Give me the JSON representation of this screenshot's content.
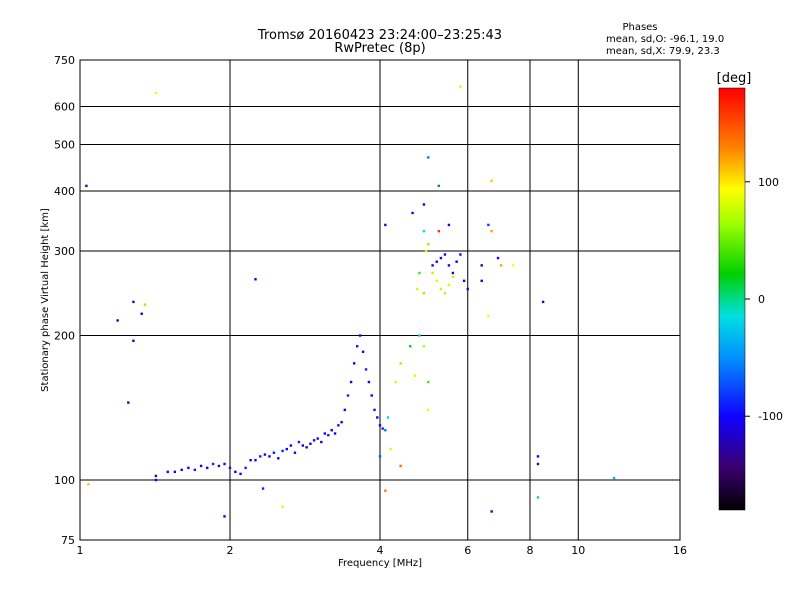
{
  "chart_data": {
    "type": "scatter",
    "title": "Tromsø 20160423 23:24:00–23:25:43",
    "subtitle": "RwPretec (8p)",
    "xlabel": "Frequency [MHz]",
    "ylabel": "Stationary phase Virtual Height [km]",
    "xscale": "log",
    "yscale": "log",
    "xlim": [
      1,
      16
    ],
    "ylim": [
      75,
      750
    ],
    "x_ticks": [
      1,
      2,
      4,
      6,
      8,
      10,
      16
    ],
    "x_tick_labels": [
      "1",
      "2",
      "4",
      "6",
      "8",
      "10",
      "16"
    ],
    "y_ticks": [
      75,
      100,
      200,
      300,
      400,
      500,
      600,
      750
    ],
    "y_tick_labels": [
      "75",
      "100",
      "200",
      "300",
      "400",
      "500",
      "600",
      "750"
    ],
    "grid": true,
    "stats": {
      "heading": "Phases",
      "line_o": "mean, sd,O: -96.1, 19.0",
      "line_x": "mean, sd,X:  79.9, 23.3"
    },
    "colorbar": {
      "label": "[deg]",
      "min": -180,
      "max": 180,
      "ticks": [
        100,
        0,
        -100
      ],
      "tick_labels": [
        "100",
        "0",
        "-100"
      ]
    },
    "series": [
      {
        "points": [
          [
            1.03,
            410,
            -120
          ],
          [
            1.19,
            215,
            -110
          ],
          [
            1.28,
            235,
            -120
          ],
          [
            1.28,
            195,
            -120
          ],
          [
            1.33,
            222,
            -100
          ],
          [
            1.35,
            232,
            60
          ],
          [
            1.25,
            145,
            -125
          ],
          [
            1.42,
            640,
            90
          ],
          [
            1.04,
            98,
            110
          ],
          [
            1.95,
            84,
            -110
          ],
          [
            2.25,
            262,
            -110
          ],
          [
            2.33,
            96,
            -90
          ],
          [
            2.55,
            88,
            100
          ],
          [
            1.42,
            102,
            -110
          ],
          [
            1.42,
            100,
            -105
          ],
          [
            1.5,
            104,
            -100
          ],
          [
            1.55,
            104,
            -115
          ],
          [
            1.6,
            105,
            -120
          ],
          [
            1.65,
            106,
            -100
          ],
          [
            1.7,
            105,
            -95
          ],
          [
            1.75,
            107,
            -110
          ],
          [
            1.8,
            106,
            -100
          ],
          [
            1.85,
            108,
            -90
          ],
          [
            1.9,
            107,
            -110
          ],
          [
            1.95,
            108,
            -100
          ],
          [
            2.0,
            106,
            -95
          ],
          [
            2.05,
            104,
            -110
          ],
          [
            2.1,
            103,
            -100
          ],
          [
            2.15,
            106,
            -90
          ],
          [
            2.2,
            110,
            -110
          ],
          [
            2.25,
            110,
            -100
          ],
          [
            2.3,
            112,
            -90
          ],
          [
            2.35,
            113,
            -100
          ],
          [
            2.4,
            112,
            -110
          ],
          [
            2.45,
            114,
            -95
          ],
          [
            2.5,
            111,
            -100
          ],
          [
            2.55,
            115,
            -90
          ],
          [
            2.6,
            116,
            -105
          ],
          [
            2.65,
            118,
            -100
          ],
          [
            2.7,
            114,
            -110
          ],
          [
            2.75,
            120,
            -90
          ],
          [
            2.8,
            118,
            -100
          ],
          [
            2.85,
            117,
            -120
          ],
          [
            2.9,
            119,
            -100
          ],
          [
            2.95,
            121,
            -95
          ],
          [
            3.0,
            122,
            -110
          ],
          [
            3.05,
            120,
            -120
          ],
          [
            3.1,
            125,
            -100
          ],
          [
            3.15,
            124,
            -90
          ],
          [
            3.2,
            127,
            -110
          ],
          [
            3.25,
            125,
            -100
          ],
          [
            3.3,
            130,
            -95
          ],
          [
            3.35,
            132,
            -110
          ],
          [
            3.4,
            140,
            -100
          ],
          [
            3.45,
            150,
            -90
          ],
          [
            3.5,
            160,
            -110
          ],
          [
            3.55,
            175,
            -100
          ],
          [
            3.6,
            190,
            -95
          ],
          [
            3.65,
            200,
            -110
          ],
          [
            3.7,
            185,
            -100
          ],
          [
            3.75,
            170,
            -90
          ],
          [
            3.8,
            160,
            -110
          ],
          [
            3.85,
            150,
            -100
          ],
          [
            3.9,
            140,
            -95
          ],
          [
            3.95,
            135,
            -110
          ],
          [
            4.0,
            130,
            -100
          ],
          [
            4.05,
            128,
            -90
          ],
          [
            4.1,
            127,
            -60
          ],
          [
            4.15,
            135,
            -20
          ],
          [
            4.3,
            160,
            80
          ],
          [
            4.4,
            175,
            60
          ],
          [
            4.6,
            190,
            20
          ],
          [
            4.7,
            165,
            100
          ],
          [
            4.8,
            200,
            -10
          ],
          [
            4.9,
            190,
            70
          ],
          [
            5.0,
            160,
            40
          ],
          [
            5.0,
            140,
            90
          ],
          [
            5.1,
            280,
            -110
          ],
          [
            5.2,
            285,
            -100
          ],
          [
            5.3,
            290,
            -120
          ],
          [
            5.4,
            295,
            -110
          ],
          [
            5.5,
            280,
            -100
          ],
          [
            5.6,
            270,
            -120
          ],
          [
            5.7,
            285,
            -110
          ],
          [
            5.8,
            295,
            -100
          ],
          [
            5.9,
            260,
            -120
          ],
          [
            6.0,
            250,
            -110
          ],
          [
            4.9,
            330,
            -20
          ],
          [
            4.95,
            300,
            80
          ],
          [
            5.0,
            310,
            60
          ],
          [
            5.1,
            270,
            70
          ],
          [
            5.2,
            260,
            80
          ],
          [
            5.3,
            250,
            75
          ],
          [
            5.4,
            245,
            70
          ],
          [
            5.5,
            255,
            80
          ],
          [
            5.6,
            265,
            75
          ],
          [
            4.75,
            250,
            80
          ],
          [
            4.8,
            270,
            40
          ],
          [
            4.9,
            245,
            60
          ],
          [
            5.0,
            470,
            -60
          ],
          [
            5.25,
            410,
            -60
          ],
          [
            5.5,
            340,
            -110
          ],
          [
            5.25,
            330,
            160
          ],
          [
            4.65,
            360,
            -110
          ],
          [
            6.7,
            420,
            110
          ],
          [
            6.7,
            330,
            120
          ],
          [
            6.6,
            340,
            -80
          ],
          [
            6.9,
            290,
            -100
          ],
          [
            6.4,
            280,
            -120
          ],
          [
            7.0,
            280,
            120
          ],
          [
            7.4,
            280,
            90
          ],
          [
            6.6,
            220,
            90
          ],
          [
            6.4,
            260,
            -120
          ],
          [
            8.5,
            235,
            -120
          ],
          [
            8.3,
            112,
            -110
          ],
          [
            8.3,
            108,
            -120
          ],
          [
            8.3,
            92,
            0
          ],
          [
            6.7,
            86,
            -120
          ],
          [
            11.8,
            101,
            -30
          ],
          [
            5.8,
            660,
            100
          ],
          [
            4.9,
            375,
            -110
          ],
          [
            4.1,
            340,
            -110
          ],
          [
            4.1,
            95,
            130
          ],
          [
            4.4,
            107,
            140
          ],
          [
            4.2,
            116,
            80
          ],
          [
            4.0,
            112,
            -70
          ]
        ]
      }
    ]
  }
}
